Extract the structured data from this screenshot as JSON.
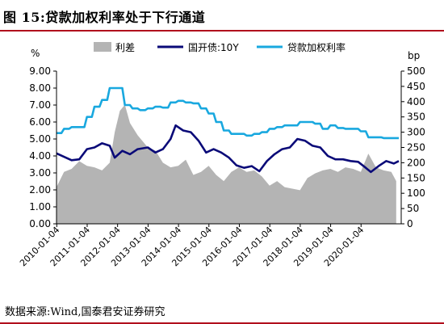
{
  "header": {
    "title": "图 15:贷款加权利率处于下行通道"
  },
  "source": "数据来源:Wind,国泰君安证券研究",
  "chart_data": {
    "type": "line",
    "left_unit": "%",
    "right_unit": "bp",
    "left_axis": {
      "min": 0,
      "max": 9,
      "ticks": [
        "0.00",
        "1.00",
        "2.00",
        "3.00",
        "4.00",
        "5.00",
        "6.00",
        "7.00",
        "8.00",
        "9.00"
      ]
    },
    "right_axis": {
      "min": 0,
      "max": 500,
      "ticks": [
        "0",
        "50",
        "100",
        "150",
        "200",
        "250",
        "300",
        "350",
        "400",
        "450",
        "500"
      ]
    },
    "x_range": [
      "2010-01-01",
      "2021-04-30"
    ],
    "x_ticks": [
      "2010-01-04",
      "2011-01-04",
      "2012-01-04",
      "2013-01-04",
      "2014-01-04",
      "2015-01-04",
      "2016-01-04",
      "2017-01-04",
      "2018-01-04",
      "2019-01-04",
      "2020-01-04"
    ],
    "grid": false,
    "legend_position": "top",
    "series": [
      {
        "name": "利差",
        "kind": "area",
        "axis": "right",
        "color": "#b4b4b4",
        "x": [
          "2010-01",
          "2010-04",
          "2010-07",
          "2010-10",
          "2011-01",
          "2011-04",
          "2011-07",
          "2011-10",
          "2011-12",
          "2012-02",
          "2012-04",
          "2012-06",
          "2012-09",
          "2013-01",
          "2013-04",
          "2013-07",
          "2013-10",
          "2014-01",
          "2014-04",
          "2014-07",
          "2014-10",
          "2015-01",
          "2015-04",
          "2015-07",
          "2015-10",
          "2016-01",
          "2016-04",
          "2016-07",
          "2016-10",
          "2017-01",
          "2017-04",
          "2017-07",
          "2017-10",
          "2018-01",
          "2018-04",
          "2018-07",
          "2018-10",
          "2019-01",
          "2019-04",
          "2019-07",
          "2019-10",
          "2020-01",
          "2020-04",
          "2020-07",
          "2020-10",
          "2021-01",
          "2021-03"
        ],
        "values": [
          120,
          170,
          180,
          205,
          190,
          185,
          175,
          200,
          300,
          370,
          390,
          330,
          290,
          250,
          240,
          200,
          185,
          190,
          210,
          160,
          170,
          190,
          160,
          140,
          170,
          185,
          170,
          175,
          155,
          125,
          140,
          120,
          115,
          110,
          150,
          165,
          175,
          180,
          170,
          185,
          180,
          170,
          230,
          185,
          175,
          170,
          140
        ]
      },
      {
        "name": "国开债:10Y",
        "kind": "line",
        "axis": "left",
        "color": "#0a0a78",
        "x": [
          "2010-01",
          "2010-04",
          "2010-07",
          "2010-10",
          "2011-01",
          "2011-04",
          "2011-07",
          "2011-10",
          "2011-12",
          "2012-03",
          "2012-06",
          "2012-09",
          "2013-01",
          "2013-04",
          "2013-07",
          "2013-10",
          "2013-12",
          "2014-03",
          "2014-06",
          "2014-09",
          "2014-12",
          "2015-03",
          "2015-06",
          "2015-09",
          "2015-12",
          "2016-03",
          "2016-06",
          "2016-09",
          "2016-12",
          "2017-03",
          "2017-06",
          "2017-09",
          "2017-12",
          "2018-03",
          "2018-06",
          "2018-09",
          "2018-12",
          "2019-03",
          "2019-06",
          "2019-09",
          "2019-12",
          "2020-03",
          "2020-05",
          "2020-08",
          "2020-11",
          "2021-02",
          "2021-04"
        ],
        "values": [
          4.15,
          3.95,
          3.75,
          3.8,
          4.4,
          4.5,
          4.75,
          4.6,
          3.9,
          4.3,
          4.1,
          4.4,
          4.5,
          4.2,
          4.4,
          5.0,
          5.8,
          5.5,
          5.4,
          4.9,
          4.2,
          4.4,
          4.2,
          3.9,
          3.45,
          3.3,
          3.4,
          3.1,
          3.7,
          4.1,
          4.4,
          4.5,
          5.0,
          4.9,
          4.6,
          4.5,
          4.0,
          3.8,
          3.8,
          3.7,
          3.65,
          3.3,
          3.05,
          3.4,
          3.7,
          3.55,
          3.7
        ]
      },
      {
        "name": "贷款加权利率",
        "kind": "line",
        "axis": "left",
        "color": "#19a8df",
        "x": [
          "2010-01",
          "2010-03",
          "2010-04",
          "2010-06",
          "2010-07",
          "2010-09",
          "2010-10",
          "2010-12",
          "2011-01",
          "2011-03",
          "2011-04",
          "2011-06",
          "2011-07",
          "2011-09",
          "2011-10",
          "2011-12",
          "2012-01",
          "2012-03",
          "2012-04",
          "2012-06",
          "2012-07",
          "2012-09",
          "2012-10",
          "2012-12",
          "2013-01",
          "2013-03",
          "2013-04",
          "2013-06",
          "2013-07",
          "2013-09",
          "2013-10",
          "2013-12",
          "2014-01",
          "2014-03",
          "2014-04",
          "2014-06",
          "2014-07",
          "2014-09",
          "2014-10",
          "2014-12",
          "2015-01",
          "2015-03",
          "2015-04",
          "2015-06",
          "2015-07",
          "2015-09",
          "2015-10",
          "2015-12",
          "2016-01",
          "2016-03",
          "2016-04",
          "2016-06",
          "2016-07",
          "2016-09",
          "2016-10",
          "2016-12",
          "2017-01",
          "2017-03",
          "2017-04",
          "2017-06",
          "2017-07",
          "2017-09",
          "2017-10",
          "2017-12",
          "2018-01",
          "2018-03",
          "2018-04",
          "2018-06",
          "2018-07",
          "2018-09",
          "2018-10",
          "2018-12",
          "2019-01",
          "2019-03",
          "2019-04",
          "2019-06",
          "2019-07",
          "2019-09",
          "2019-10",
          "2019-12",
          "2020-01",
          "2020-03",
          "2020-04",
          "2020-06",
          "2020-07",
          "2020-09",
          "2020-10",
          "2020-12",
          "2021-04"
        ],
        "values": [
          5.35,
          5.35,
          5.6,
          5.6,
          5.7,
          5.7,
          5.7,
          5.7,
          6.3,
          6.3,
          6.9,
          6.9,
          7.3,
          7.3,
          8.0,
          8.0,
          8.0,
          8.0,
          7.0,
          7.0,
          6.8,
          6.8,
          6.7,
          6.7,
          6.8,
          6.8,
          6.9,
          6.9,
          6.85,
          6.85,
          7.15,
          7.15,
          7.25,
          7.25,
          7.15,
          7.15,
          7.1,
          7.1,
          6.8,
          6.8,
          6.5,
          6.5,
          6.0,
          6.0,
          5.5,
          5.5,
          5.3,
          5.3,
          5.3,
          5.3,
          5.2,
          5.2,
          5.3,
          5.3,
          5.4,
          5.4,
          5.6,
          5.6,
          5.7,
          5.7,
          5.8,
          5.8,
          5.8,
          5.8,
          6.0,
          6.0,
          6.0,
          6.0,
          5.9,
          5.9,
          5.6,
          5.6,
          5.8,
          5.8,
          5.65,
          5.65,
          5.6,
          5.6,
          5.6,
          5.6,
          5.45,
          5.45,
          5.1,
          5.1,
          5.1,
          5.1,
          5.05,
          5.05,
          5.05
        ]
      }
    ]
  }
}
